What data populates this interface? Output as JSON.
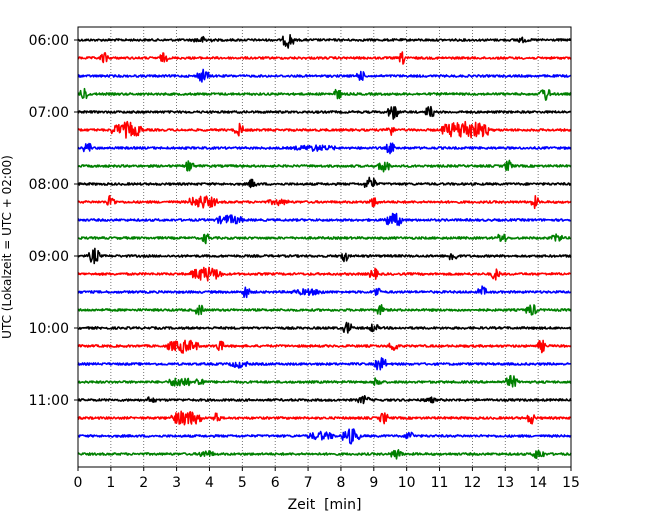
{
  "chart_data": {
    "type": "line",
    "title": "",
    "xlabel": "Zeit  [min]",
    "ylabel": "UTC (Lokalzeit = UTC + 02:00)",
    "xlim": [
      0,
      15
    ],
    "xticks": [
      0,
      1,
      2,
      3,
      4,
      5,
      6,
      7,
      8,
      9,
      10,
      11,
      12,
      13,
      14,
      15
    ],
    "row_interval_minutes": 15,
    "y_tick_labels": [
      "06:00",
      "07:00",
      "08:00",
      "09:00",
      "10:00",
      "11:00"
    ],
    "y_tick_rows": [
      0,
      4,
      8,
      12,
      16,
      20
    ],
    "grid": "vertical dotted",
    "colors": [
      "#000000",
      "#ff0000",
      "#0000ff",
      "#008000"
    ],
    "rows": [
      {
        "start": "06:00",
        "color": "#000000",
        "events": [
          {
            "t": 3.8,
            "amp": 0.6,
            "dur": 0.5
          },
          {
            "t": 6.4,
            "amp": 1.4,
            "dur": 0.3
          },
          {
            "t": 13.5,
            "amp": 0.5,
            "dur": 0.4
          }
        ]
      },
      {
        "start": "06:15",
        "color": "#ff0000",
        "events": [
          {
            "t": 0.8,
            "amp": 1.0,
            "dur": 0.2
          },
          {
            "t": 2.6,
            "amp": 0.9,
            "dur": 0.2
          },
          {
            "t": 9.9,
            "amp": 1.2,
            "dur": 0.2
          }
        ]
      },
      {
        "start": "06:30",
        "color": "#0000ff",
        "events": [
          {
            "t": 3.8,
            "amp": 1.2,
            "dur": 0.3
          },
          {
            "t": 8.6,
            "amp": 1.0,
            "dur": 0.2
          }
        ]
      },
      {
        "start": "06:45",
        "color": "#008000",
        "events": [
          {
            "t": 0.2,
            "amp": 1.2,
            "dur": 0.2
          },
          {
            "t": 7.9,
            "amp": 1.0,
            "dur": 0.2
          },
          {
            "t": 14.2,
            "amp": 1.3,
            "dur": 0.3
          }
        ]
      },
      {
        "start": "07:00",
        "color": "#000000",
        "events": [
          {
            "t": 9.6,
            "amp": 1.3,
            "dur": 0.3
          },
          {
            "t": 10.7,
            "amp": 1.2,
            "dur": 0.2
          }
        ]
      },
      {
        "start": "07:15",
        "color": "#ff0000",
        "events": [
          {
            "t": 1.5,
            "amp": 1.4,
            "dur": 0.9
          },
          {
            "t": 4.9,
            "amp": 1.2,
            "dur": 0.2
          },
          {
            "t": 9.5,
            "amp": 1.1,
            "dur": 0.2
          },
          {
            "t": 11.8,
            "amp": 1.7,
            "dur": 1.4
          }
        ]
      },
      {
        "start": "07:30",
        "color": "#0000ff",
        "events": [
          {
            "t": 0.3,
            "amp": 1.1,
            "dur": 0.2
          },
          {
            "t": 7.2,
            "amp": 0.6,
            "dur": 1.2
          },
          {
            "t": 9.5,
            "amp": 1.1,
            "dur": 0.2
          }
        ]
      },
      {
        "start": "07:45",
        "color": "#008000",
        "events": [
          {
            "t": 3.4,
            "amp": 1.1,
            "dur": 0.2
          },
          {
            "t": 9.3,
            "amp": 1.2,
            "dur": 0.3
          },
          {
            "t": 13.1,
            "amp": 1.1,
            "dur": 0.2
          }
        ]
      },
      {
        "start": "08:00",
        "color": "#000000",
        "events": [
          {
            "t": 5.3,
            "amp": 0.9,
            "dur": 0.2
          },
          {
            "t": 8.9,
            "amp": 1.3,
            "dur": 0.3
          }
        ]
      },
      {
        "start": "08:15",
        "color": "#ff0000",
        "events": [
          {
            "t": 1.0,
            "amp": 1.3,
            "dur": 0.2
          },
          {
            "t": 3.8,
            "amp": 1.2,
            "dur": 0.8
          },
          {
            "t": 6.1,
            "amp": 0.6,
            "dur": 0.6
          },
          {
            "t": 9.0,
            "amp": 1.0,
            "dur": 0.2
          },
          {
            "t": 13.9,
            "amp": 1.1,
            "dur": 0.2
          }
        ]
      },
      {
        "start": "08:30",
        "color": "#0000ff",
        "events": [
          {
            "t": 4.6,
            "amp": 0.9,
            "dur": 0.8
          },
          {
            "t": 9.6,
            "amp": 1.3,
            "dur": 0.5
          }
        ]
      },
      {
        "start": "08:45",
        "color": "#008000",
        "events": [
          {
            "t": 3.9,
            "amp": 1.0,
            "dur": 0.2
          },
          {
            "t": 12.9,
            "amp": 1.1,
            "dur": 0.2
          },
          {
            "t": 14.6,
            "amp": 0.8,
            "dur": 0.3
          }
        ]
      },
      {
        "start": "09:00",
        "color": "#000000",
        "events": [
          {
            "t": 0.5,
            "amp": 1.4,
            "dur": 0.3
          },
          {
            "t": 8.1,
            "amp": 1.1,
            "dur": 0.2
          },
          {
            "t": 11.4,
            "amp": 1.1,
            "dur": 0.2
          }
        ]
      },
      {
        "start": "09:15",
        "color": "#ff0000",
        "events": [
          {
            "t": 3.9,
            "amp": 1.3,
            "dur": 0.9
          },
          {
            "t": 9.0,
            "amp": 1.1,
            "dur": 0.2
          },
          {
            "t": 12.7,
            "amp": 1.1,
            "dur": 0.2
          }
        ]
      },
      {
        "start": "09:30",
        "color": "#0000ff",
        "events": [
          {
            "t": 5.1,
            "amp": 1.1,
            "dur": 0.2
          },
          {
            "t": 7.0,
            "amp": 0.6,
            "dur": 1.0
          },
          {
            "t": 9.1,
            "amp": 1.0,
            "dur": 0.2
          },
          {
            "t": 12.3,
            "amp": 1.0,
            "dur": 0.2
          }
        ]
      },
      {
        "start": "09:45",
        "color": "#008000",
        "events": [
          {
            "t": 3.7,
            "amp": 1.1,
            "dur": 0.2
          },
          {
            "t": 9.2,
            "amp": 1.0,
            "dur": 0.2
          },
          {
            "t": 13.8,
            "amp": 1.1,
            "dur": 0.3
          }
        ]
      },
      {
        "start": "10:00",
        "color": "#000000",
        "events": [
          {
            "t": 8.2,
            "amp": 1.2,
            "dur": 0.2
          },
          {
            "t": 9.0,
            "amp": 0.9,
            "dur": 0.2
          }
        ]
      },
      {
        "start": "10:15",
        "color": "#ff0000",
        "events": [
          {
            "t": 3.2,
            "amp": 1.2,
            "dur": 0.9
          },
          {
            "t": 4.3,
            "amp": 1.1,
            "dur": 0.2
          },
          {
            "t": 9.6,
            "amp": 1.1,
            "dur": 0.2
          },
          {
            "t": 14.1,
            "amp": 1.2,
            "dur": 0.2
          }
        ]
      },
      {
        "start": "10:30",
        "color": "#0000ff",
        "events": [
          {
            "t": 4.9,
            "amp": 0.7,
            "dur": 0.5
          },
          {
            "t": 9.2,
            "amp": 1.3,
            "dur": 0.3
          }
        ]
      },
      {
        "start": "10:45",
        "color": "#008000",
        "events": [
          {
            "t": 3.1,
            "amp": 1.0,
            "dur": 0.6
          },
          {
            "t": 3.7,
            "amp": 1.1,
            "dur": 0.2
          },
          {
            "t": 9.1,
            "amp": 1.0,
            "dur": 0.2
          },
          {
            "t": 13.2,
            "amp": 1.2,
            "dur": 0.3
          }
        ]
      },
      {
        "start": "11:00",
        "color": "#000000",
        "events": [
          {
            "t": 2.2,
            "amp": 0.6,
            "dur": 0.3
          },
          {
            "t": 8.7,
            "amp": 0.8,
            "dur": 0.3
          },
          {
            "t": 10.7,
            "amp": 0.6,
            "dur": 0.3
          }
        ]
      },
      {
        "start": "11:15",
        "color": "#ff0000",
        "events": [
          {
            "t": 3.3,
            "amp": 1.4,
            "dur": 0.9
          },
          {
            "t": 4.2,
            "amp": 1.1,
            "dur": 0.2
          },
          {
            "t": 9.3,
            "amp": 1.1,
            "dur": 0.2
          },
          {
            "t": 13.8,
            "amp": 1.1,
            "dur": 0.2
          }
        ]
      },
      {
        "start": "11:30",
        "color": "#0000ff",
        "events": [
          {
            "t": 7.4,
            "amp": 0.8,
            "dur": 0.8
          },
          {
            "t": 8.3,
            "amp": 1.4,
            "dur": 0.5
          },
          {
            "t": 10.1,
            "amp": 1.0,
            "dur": 0.2
          }
        ]
      },
      {
        "start": "11:45",
        "color": "#008000",
        "events": [
          {
            "t": 3.9,
            "amp": 0.7,
            "dur": 0.4
          },
          {
            "t": 9.7,
            "amp": 1.0,
            "dur": 0.3
          },
          {
            "t": 14.0,
            "amp": 1.0,
            "dur": 0.3
          }
        ]
      }
    ]
  }
}
